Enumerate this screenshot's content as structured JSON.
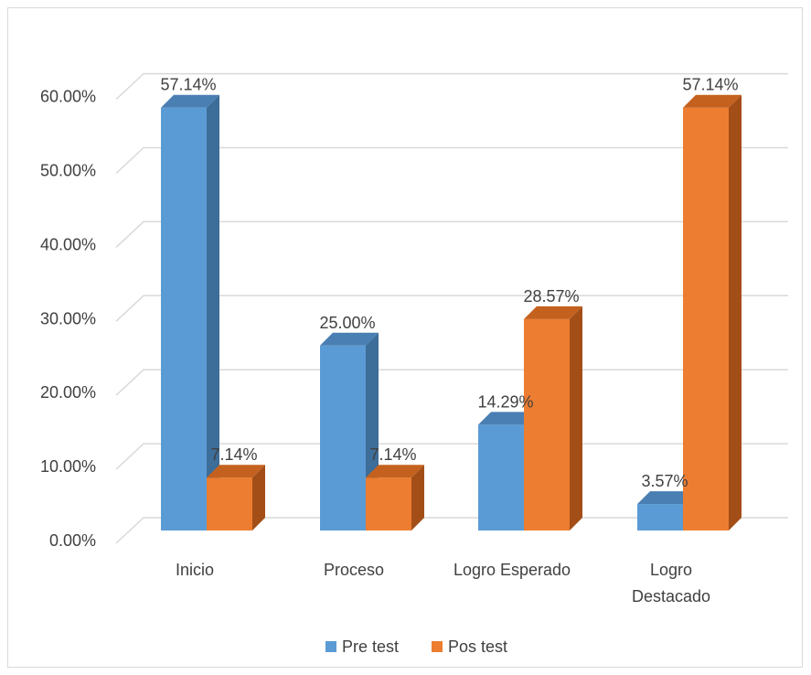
{
  "chart_data": {
    "type": "bar",
    "categories": [
      [
        "Inicio"
      ],
      [
        "Proceso"
      ],
      [
        "Logro Esperado"
      ],
      [
        "Logro",
        "Destacado"
      ]
    ],
    "series": [
      {
        "name": "Pre test",
        "values": [
          57.14,
          25.0,
          14.29,
          3.57
        ],
        "labels": [
          "57.14%",
          "25.00%",
          "14.29%",
          "3.57%"
        ],
        "color": "#5b9bd5",
        "side_color": "#3d6d99",
        "top_color": "#4a7fb3"
      },
      {
        "name": "Pos test",
        "values": [
          7.14,
          7.14,
          28.57,
          57.14
        ],
        "labels": [
          "7.14%",
          "7.14%",
          "28.57%",
          "57.14%"
        ],
        "color": "#ed7d31",
        "side_color": "#a34e17",
        "top_color": "#c4611f"
      }
    ],
    "y_ticks": [
      "0.00%",
      "10.00%",
      "20.00%",
      "30.00%",
      "40.00%",
      "50.00%",
      "60.00%"
    ],
    "ylim": [
      0,
      60
    ],
    "grid": true,
    "legend_position": "bottom",
    "style": "3d-clustered-column"
  }
}
